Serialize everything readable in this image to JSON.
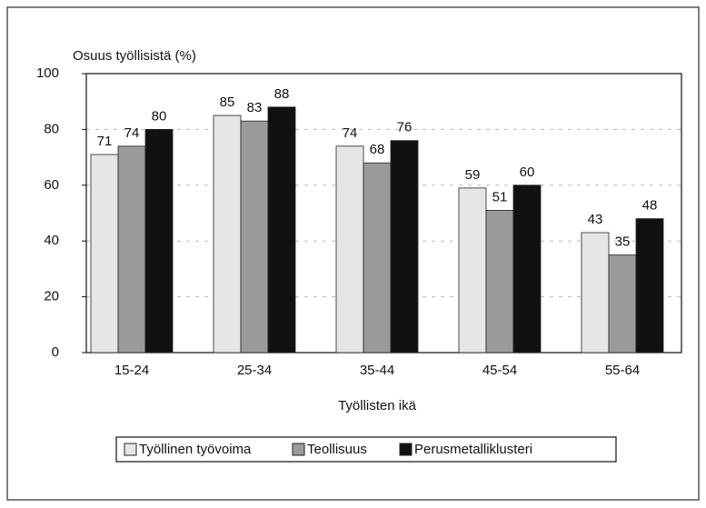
{
  "chart_data": {
    "type": "bar",
    "y_label": "Osuus työllisistä (%)",
    "x_label": "Työllisten ikä",
    "categories": [
      "15-24",
      "25-34",
      "35-44",
      "45-54",
      "55-64"
    ],
    "series": [
      {
        "name": "Työllinen työvoima",
        "color": "#e6e6e6",
        "values": [
          71,
          85,
          74,
          59,
          43
        ]
      },
      {
        "name": "Teollisuus",
        "color": "#9a9a9a",
        "values": [
          74,
          83,
          68,
          51,
          35
        ]
      },
      {
        "name": "Perusmetalliklusteri",
        "color": "#111111",
        "values": [
          80,
          88,
          76,
          60,
          48
        ]
      }
    ],
    "ylim": [
      0,
      100
    ],
    "yticks": [
      0,
      20,
      40,
      60,
      80,
      100
    ],
    "grid": true
  }
}
